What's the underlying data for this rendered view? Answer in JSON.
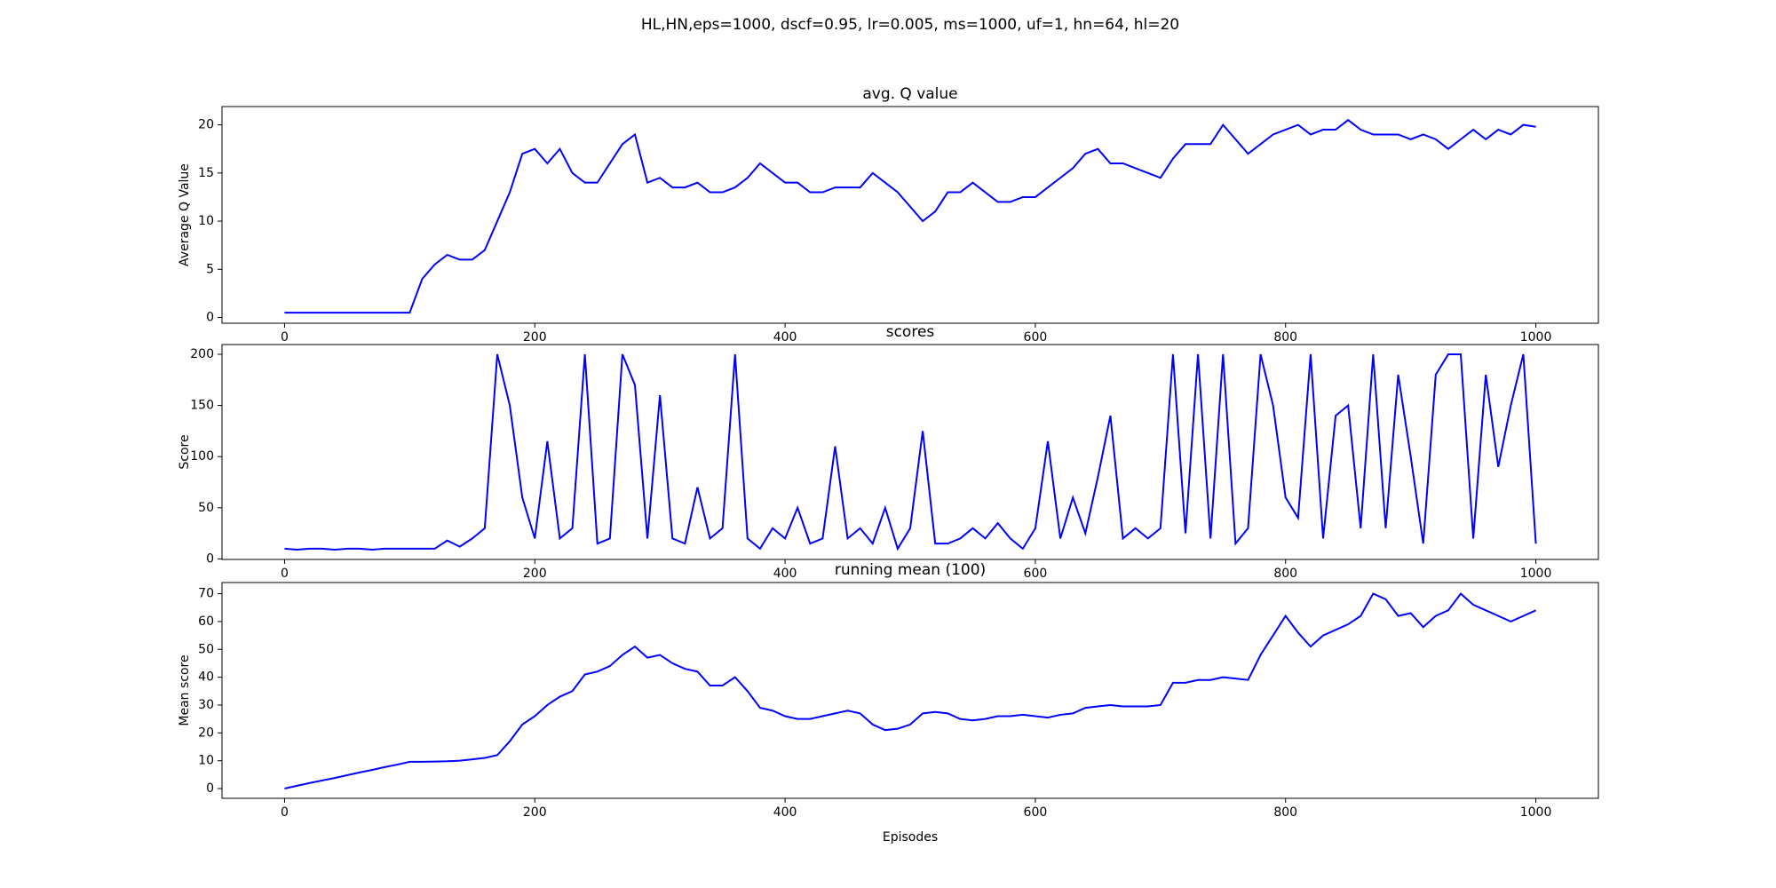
{
  "title": "HL,HN,eps=1000, dscf=0.95, lr=0.005, ms=1000, uf=1, hn=64, hl=20",
  "chart_data": [
    {
      "type": "line",
      "title": "avg. Q value",
      "ylabel": "Average Q Value",
      "x": [
        0,
        10,
        20,
        30,
        40,
        50,
        60,
        70,
        80,
        90,
        100,
        110,
        120,
        130,
        140,
        150,
        160,
        170,
        180,
        190,
        200,
        210,
        220,
        230,
        240,
        250,
        260,
        270,
        280,
        290,
        300,
        310,
        320,
        330,
        340,
        350,
        360,
        370,
        380,
        390,
        400,
        410,
        420,
        430,
        440,
        450,
        460,
        470,
        480,
        490,
        500,
        510,
        520,
        530,
        540,
        550,
        560,
        570,
        580,
        590,
        600,
        610,
        620,
        630,
        640,
        650,
        660,
        670,
        680,
        690,
        700,
        710,
        720,
        730,
        740,
        750,
        760,
        770,
        780,
        790,
        800,
        810,
        820,
        830,
        840,
        850,
        860,
        870,
        880,
        890,
        900,
        910,
        920,
        930,
        940,
        950,
        960,
        970,
        980,
        990,
        1000
      ],
      "values": [
        0.5,
        0.5,
        0.5,
        0.5,
        0.5,
        0.5,
        0.5,
        0.5,
        0.5,
        0.5,
        0.5,
        4,
        5.5,
        6.5,
        6,
        6,
        7,
        10,
        13,
        17,
        17.5,
        16,
        17.5,
        15,
        14,
        14,
        16,
        18,
        19,
        14,
        14.5,
        13.5,
        13.5,
        14,
        13,
        13,
        13.5,
        14.5,
        16,
        15,
        14,
        14,
        13,
        13,
        13.5,
        13.5,
        13.5,
        15,
        14,
        13,
        11.5,
        10,
        11,
        13,
        13,
        14,
        13,
        12,
        12,
        12.5,
        12.5,
        13.5,
        14.5,
        15.5,
        17,
        17.5,
        16,
        16,
        15.5,
        15,
        14.5,
        16.5,
        18,
        18,
        18,
        20,
        18.5,
        17,
        18,
        19,
        19.5,
        20,
        19,
        19.5,
        19.5,
        20.5,
        19.5,
        19,
        19,
        19,
        18.5,
        19,
        18.5,
        17.5,
        18.5,
        19.5,
        18.5,
        19.5,
        19,
        20,
        19.8
      ],
      "color": "#0000ff",
      "xlim": [
        -50,
        1050
      ],
      "xticks": [
        0,
        200,
        400,
        600,
        800,
        1000
      ],
      "ylim": [
        -0.6,
        21.9
      ],
      "yticks": [
        0,
        5,
        10,
        15,
        20
      ]
    },
    {
      "type": "line",
      "title": "scores",
      "ylabel": "Score",
      "x": [
        0,
        10,
        20,
        30,
        40,
        50,
        60,
        70,
        80,
        90,
        100,
        110,
        120,
        130,
        140,
        150,
        160,
        170,
        180,
        190,
        200,
        210,
        220,
        230,
        240,
        250,
        260,
        270,
        280,
        290,
        300,
        310,
        320,
        330,
        340,
        350,
        360,
        370,
        380,
        390,
        400,
        410,
        420,
        430,
        440,
        450,
        460,
        470,
        480,
        490,
        500,
        510,
        520,
        530,
        540,
        550,
        560,
        570,
        580,
        590,
        600,
        610,
        620,
        630,
        640,
        650,
        660,
        670,
        680,
        690,
        700,
        710,
        720,
        730,
        740,
        750,
        760,
        770,
        780,
        790,
        800,
        810,
        820,
        830,
        840,
        850,
        860,
        870,
        880,
        890,
        900,
        910,
        920,
        930,
        940,
        950,
        960,
        970,
        980,
        990,
        1000
      ],
      "values": [
        10,
        9,
        10,
        10,
        9,
        10,
        10,
        9,
        10,
        10,
        10,
        10,
        10,
        18,
        12,
        20,
        30,
        200,
        150,
        60,
        20,
        115,
        20,
        30,
        200,
        15,
        20,
        200,
        170,
        20,
        160,
        20,
        15,
        70,
        20,
        30,
        200,
        20,
        10,
        30,
        20,
        50,
        15,
        20,
        110,
        20,
        30,
        15,
        50,
        10,
        30,
        125,
        15,
        15,
        20,
        30,
        20,
        35,
        20,
        10,
        30,
        115,
        20,
        60,
        25,
        80,
        140,
        20,
        30,
        20,
        30,
        200,
        25,
        200,
        20,
        200,
        15,
        30,
        200,
        150,
        60,
        40,
        200,
        20,
        140,
        150,
        30,
        200,
        30,
        180,
        100,
        15,
        180,
        200,
        200,
        20,
        180,
        90,
        150,
        200,
        15
      ],
      "color": "#0000ff",
      "xlim": [
        -50,
        1050
      ],
      "xticks": [
        0,
        200,
        400,
        600,
        800,
        1000
      ],
      "ylim": [
        -0.5,
        209.5
      ],
      "yticks": [
        0,
        50,
        100,
        150,
        200
      ]
    },
    {
      "type": "line",
      "title": "running mean (100)",
      "ylabel": "Mean score",
      "xlabel": "Episodes",
      "x": [
        0,
        10,
        20,
        30,
        40,
        50,
        60,
        70,
        80,
        90,
        100,
        110,
        120,
        130,
        140,
        150,
        160,
        170,
        180,
        190,
        200,
        210,
        220,
        230,
        240,
        250,
        260,
        270,
        280,
        290,
        300,
        310,
        320,
        330,
        340,
        350,
        360,
        370,
        380,
        390,
        400,
        410,
        420,
        430,
        440,
        450,
        460,
        470,
        480,
        490,
        500,
        510,
        520,
        530,
        540,
        550,
        560,
        570,
        580,
        590,
        600,
        610,
        620,
        630,
        640,
        650,
        660,
        670,
        680,
        690,
        700,
        710,
        720,
        730,
        740,
        750,
        760,
        770,
        780,
        790,
        800,
        810,
        820,
        830,
        840,
        850,
        860,
        870,
        880,
        890,
        900,
        910,
        920,
        930,
        940,
        950,
        960,
        970,
        980,
        990,
        1000
      ],
      "values": [
        0,
        1,
        2,
        2.9,
        3.8,
        4.8,
        5.8,
        6.7,
        7.7,
        8.6,
        9.6,
        9.6,
        9.7,
        9.8,
        10,
        10.5,
        11,
        12,
        17,
        23,
        26,
        30,
        33,
        35,
        41,
        42,
        44,
        48,
        51,
        47,
        48,
        45,
        43,
        42,
        37,
        37,
        40,
        35,
        29,
        28,
        26,
        25,
        25,
        26,
        27,
        28,
        27,
        23,
        21,
        21.5,
        23,
        27,
        27.5,
        27,
        25,
        24.5,
        25,
        26,
        26,
        26.5,
        26,
        25.5,
        26.5,
        27,
        29,
        29.5,
        30,
        29.5,
        29.5,
        29.5,
        30,
        38,
        38,
        39,
        39,
        40,
        39.5,
        39,
        48,
        55,
        62,
        56,
        51,
        55,
        57,
        59,
        62,
        70,
        68,
        62,
        63,
        58,
        62,
        64,
        70,
        66,
        64,
        62,
        60,
        62,
        64
      ],
      "color": "#0000ff",
      "xlim": [
        -50,
        1050
      ],
      "xticks": [
        0,
        200,
        400,
        600,
        800,
        1000
      ],
      "ylim": [
        -3.5,
        74
      ],
      "yticks": [
        0,
        10,
        20,
        30,
        40,
        50,
        60,
        70
      ]
    }
  ]
}
